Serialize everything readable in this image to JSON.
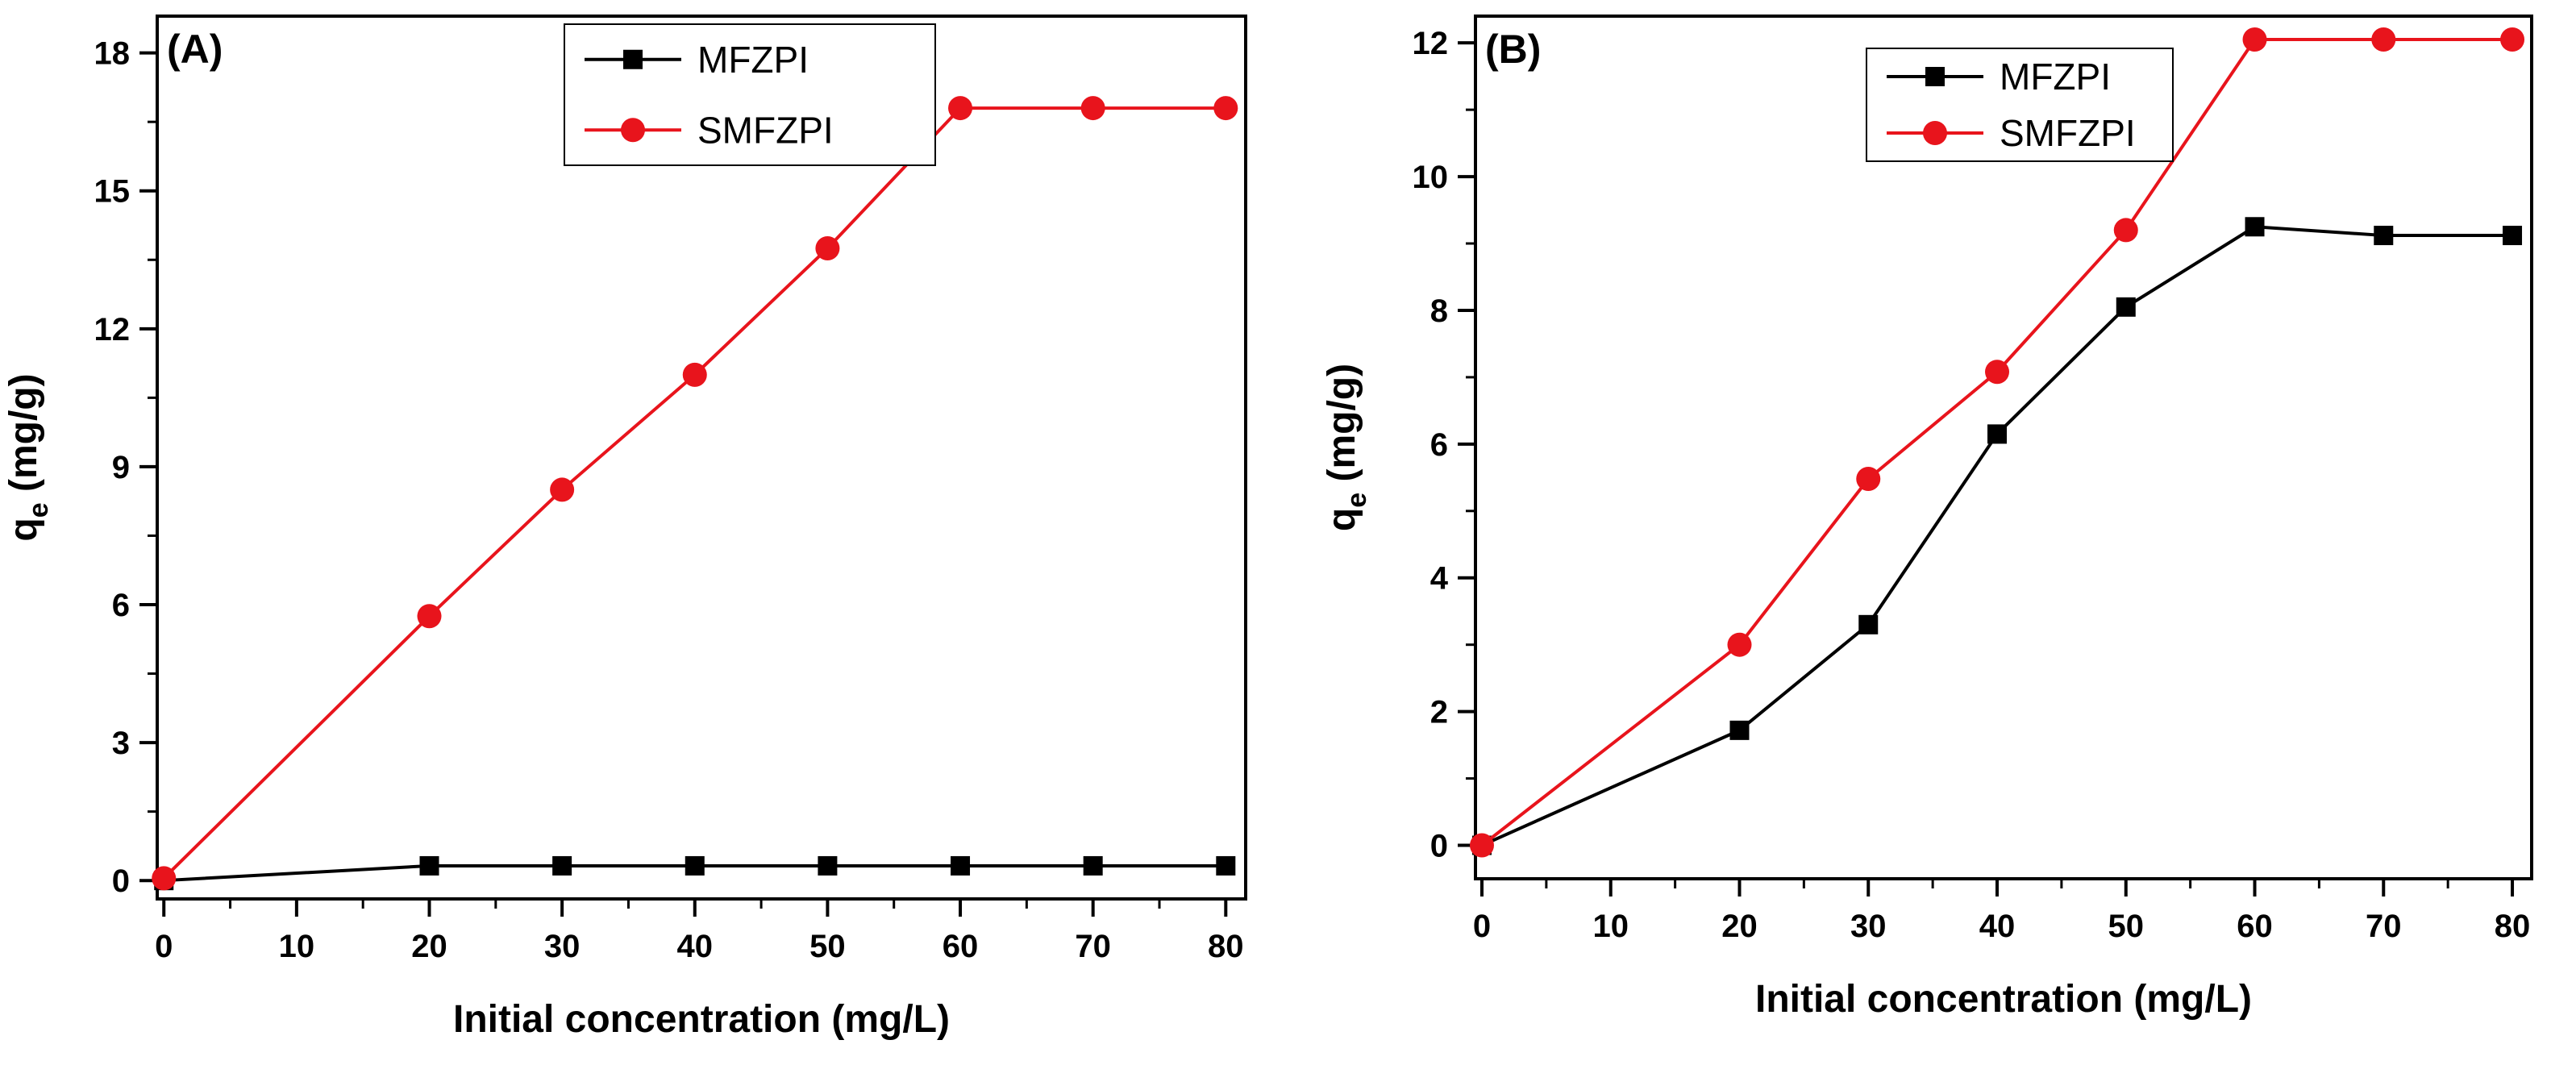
{
  "chart_data": [
    {
      "type": "line",
      "panel_label": "(A)",
      "xlabel": "Initial concentration (mg/L)",
      "ylabel_main": "q",
      "ylabel_sub": "e",
      "ylabel_unit": " (mg/g)",
      "xlim": [
        -0.5,
        81.5
      ],
      "ylim": [
        -0.4,
        18.8
      ],
      "xticks": [
        0,
        10,
        20,
        30,
        40,
        50,
        60,
        70,
        80
      ],
      "yticks": [
        0,
        3,
        6,
        9,
        12,
        15,
        18
      ],
      "legend_position": "top-center",
      "series": [
        {
          "name": "MFZPI",
          "color": "#000000",
          "marker": "square",
          "x": [
            0,
            20,
            30,
            40,
            50,
            60,
            70,
            80
          ],
          "y": [
            0,
            0.32,
            0.32,
            0.32,
            0.32,
            0.32,
            0.32,
            0.32
          ]
        },
        {
          "name": "SMFZPI",
          "color": "#e8141c",
          "marker": "circle",
          "x": [
            0,
            20,
            30,
            40,
            50,
            60,
            70,
            80
          ],
          "y": [
            0.05,
            5.75,
            8.5,
            11.0,
            13.75,
            16.8,
            16.8,
            16.8
          ]
        }
      ]
    },
    {
      "type": "line",
      "panel_label": "(B)",
      "xlabel": "Initial concentration (mg/L)",
      "ylabel_main": "q",
      "ylabel_sub": "e",
      "ylabel_unit": " (mg/g)",
      "xlim": [
        -0.5,
        81.5
      ],
      "ylim": [
        -0.5,
        12.4
      ],
      "xticks": [
        0,
        10,
        20,
        30,
        40,
        50,
        60,
        70,
        80
      ],
      "yticks": [
        0,
        2,
        4,
        6,
        8,
        10,
        12
      ],
      "legend_position": "top-center",
      "series": [
        {
          "name": "MFZPI",
          "color": "#000000",
          "marker": "square",
          "x": [
            0,
            20,
            30,
            40,
            50,
            60,
            70,
            80
          ],
          "y": [
            0,
            1.72,
            3.3,
            6.15,
            8.05,
            9.25,
            9.12,
            9.12
          ]
        },
        {
          "name": "SMFZPI",
          "color": "#e8141c",
          "marker": "circle",
          "x": [
            0,
            20,
            30,
            40,
            50,
            60,
            70,
            80
          ],
          "y": [
            0,
            3.0,
            5.48,
            7.08,
            9.2,
            12.05,
            12.05,
            12.05
          ]
        }
      ]
    }
  ]
}
